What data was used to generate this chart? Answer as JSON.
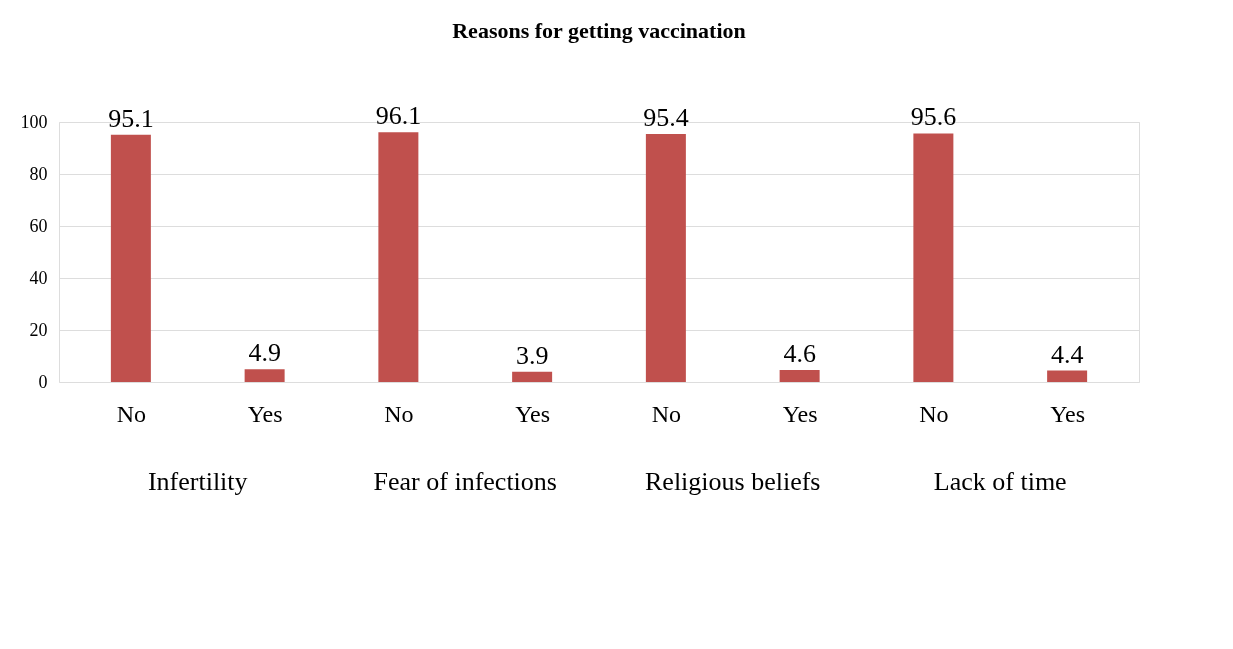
{
  "chart_data": {
    "type": "bar",
    "title": "Reasons for getting vaccination",
    "categories": [
      "No",
      "Yes",
      "No",
      "Yes",
      "No",
      "Yes",
      "No",
      "Yes"
    ],
    "series": [
      {
        "color": "#c0504d",
        "values": [
          95.1,
          4.9,
          96.1,
          3.9,
          95.4,
          4.6,
          95.6,
          4.4
        ]
      }
    ],
    "annotations": [
      "Infertility",
      "Fear of infections",
      "Religious beliefs",
      "Lack of time"
    ],
    "ylim": [
      0,
      100
    ],
    "yticks": [
      0,
      20,
      40,
      60,
      80,
      100
    ],
    "grid": "y",
    "data_labels": true
  }
}
